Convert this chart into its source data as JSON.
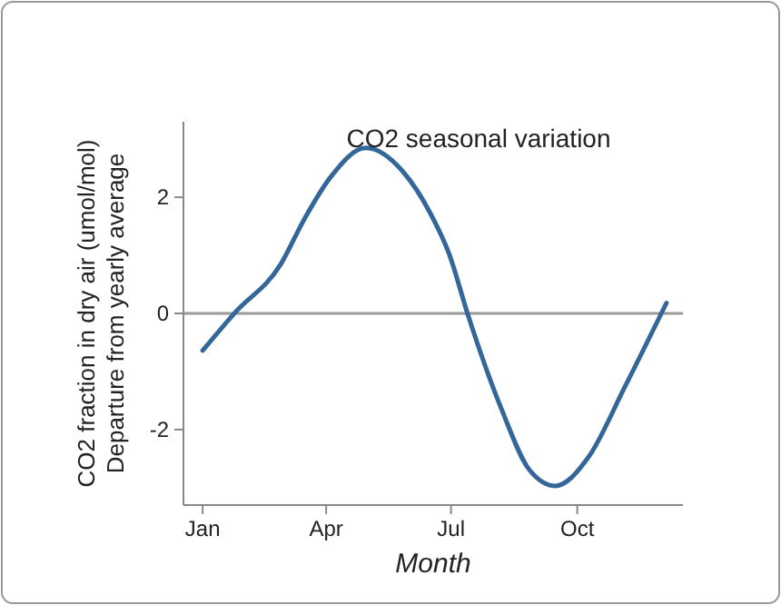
{
  "chart_data": {
    "type": "line",
    "title": "CO2 seasonal variation",
    "xlabel": "Month",
    "ylabel": "CO2 fraction in dry air (umol/mol)\nDeparture from yearly average",
    "x": [
      "--01-15",
      "--02-07",
      "--03-13",
      "--03-30",
      "--04-18",
      "--05-14",
      "--06-10",
      "--06-30",
      "--07-14",
      "--07-27",
      "--08-21",
      "--09-10",
      "--09-29",
      "--10-23",
      "--11-19",
      "--12-19"
    ],
    "series": [
      {
        "color": "#336699",
        "values": [
          -0.64,
          0,
          0.85,
          1.62,
          2.34,
          2.85,
          2.44,
          1.72,
          1.0,
          0,
          -1.66,
          -2.69,
          -2.97,
          -2.48,
          -1.25,
          0.18
        ]
      }
    ],
    "xlim": [
      "--01-01",
      "--12-31"
    ],
    "xticks": [
      {
        "value": "--01-15",
        "label": "Jan"
      },
      {
        "value": "--04-15",
        "label": "Apr"
      },
      {
        "value": "--07-15",
        "label": "Jul"
      },
      {
        "value": "--10-15",
        "label": "Oct"
      }
    ],
    "ylim": [
      -3.3,
      3.3
    ],
    "yticks": [
      -2,
      0,
      2
    ],
    "ref_lines": [
      {
        "axis": "y",
        "value": 0,
        "color": "#999999"
      }
    ],
    "grid": false,
    "marker": "none",
    "line_style": "solid"
  }
}
